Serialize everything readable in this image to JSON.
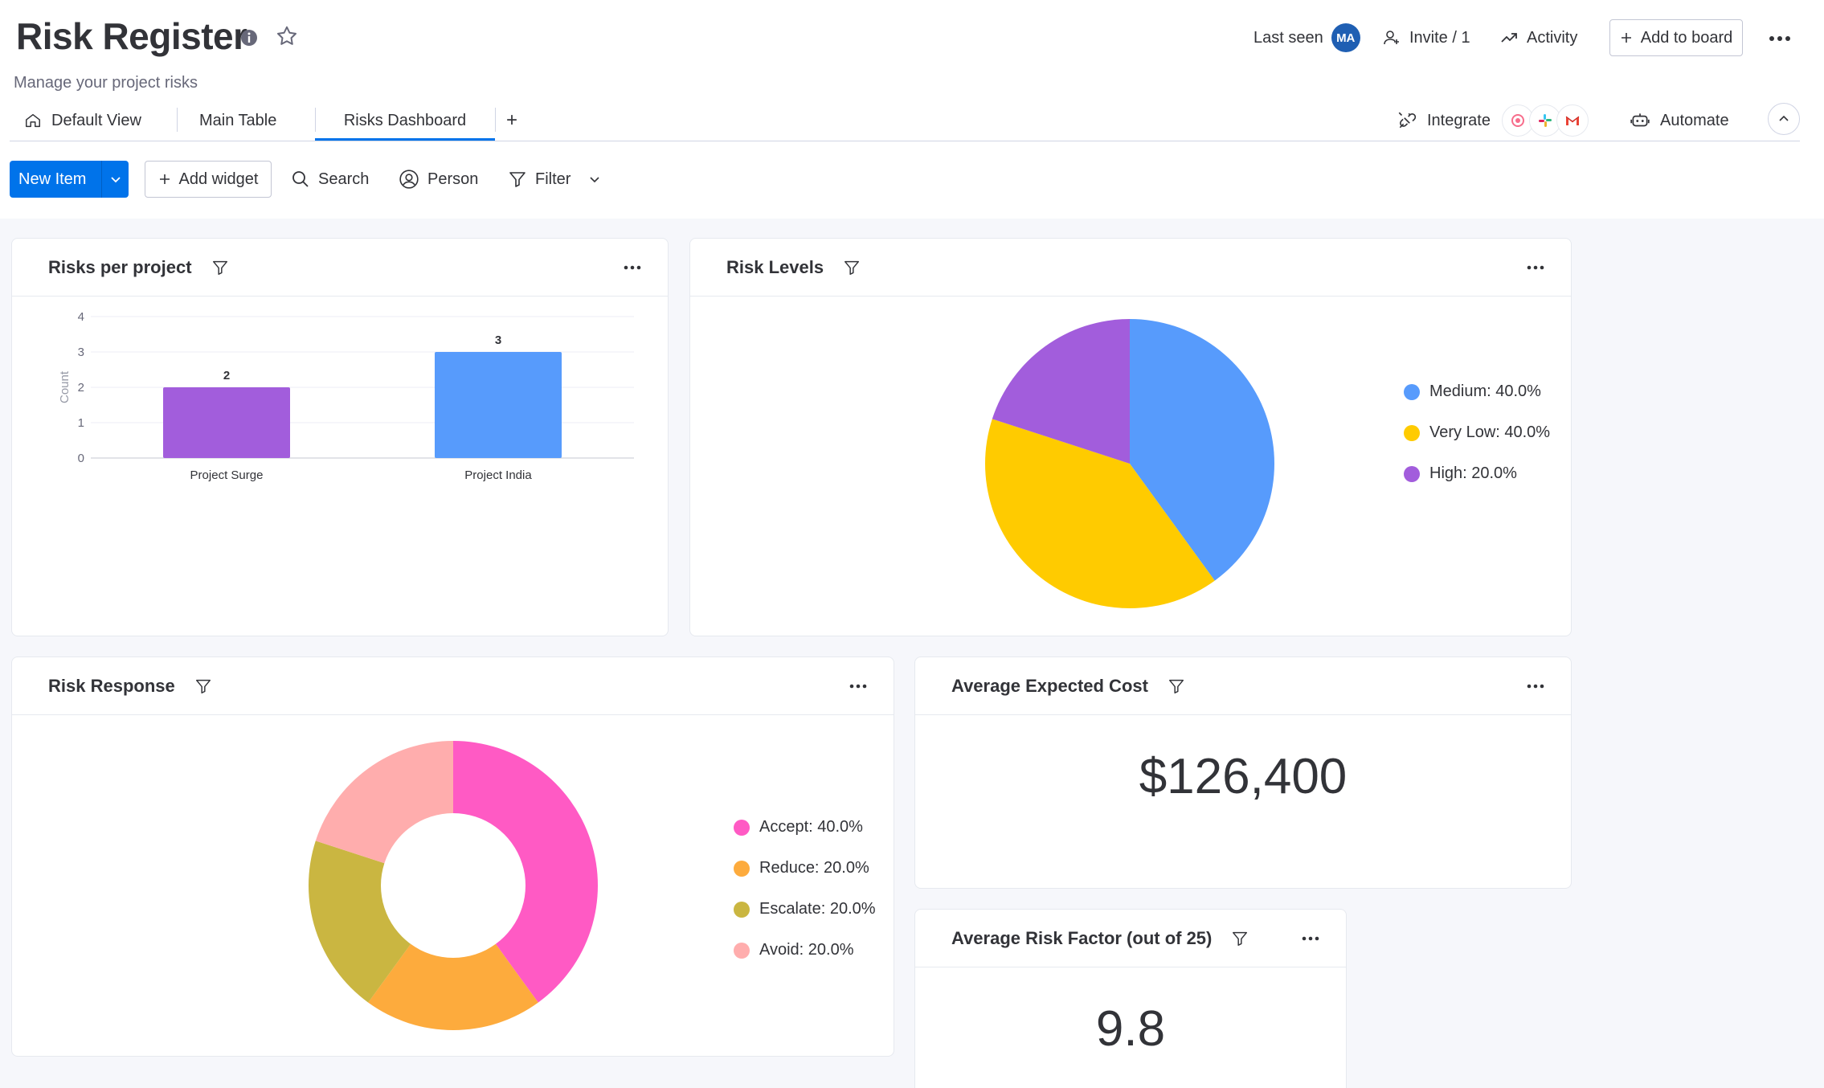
{
  "board": {
    "title": "Risk Register",
    "subtitle": "Manage your project risks"
  },
  "header": {
    "last_seen_label": "Last seen",
    "avatar_initials": "MA",
    "invite_label": "Invite / 1",
    "activity_label": "Activity",
    "add_to_board_label": "Add to board"
  },
  "tabs": [
    {
      "label": "Default View",
      "active": false
    },
    {
      "label": "Main Table",
      "active": false
    },
    {
      "label": "Risks Dashboard",
      "active": true
    }
  ],
  "tabs_add_label": "+",
  "integrations": {
    "integrate_label": "Integrate",
    "automate_label": "Automate"
  },
  "toolbar": {
    "new_item_label": "New Item",
    "add_widget_label": "Add widget",
    "search_label": "Search",
    "person_label": "Person",
    "filter_label": "Filter"
  },
  "colors": {
    "accent": "#0073ea",
    "purple": "#a25ddc",
    "blue": "#579bfc",
    "yellow": "#ffcb00",
    "pink": "#ff5ac4",
    "orange": "#fdab3d",
    "olive": "#cab641",
    "light_red": "#ffadad"
  },
  "widgets": {
    "risks_per_project": {
      "title": "Risks per project"
    },
    "risk_levels": {
      "title": "Risk Levels"
    },
    "risk_response": {
      "title": "Risk Response"
    },
    "avg_expected_cost": {
      "title": "Average Expected Cost",
      "value": "$126,400"
    },
    "avg_risk_factor": {
      "title": "Average Risk Factor (out of 25)",
      "value": "9.8"
    }
  },
  "chart_data": [
    {
      "type": "bar",
      "title": "Risks per project",
      "categories": [
        "Project Surge",
        "Project India"
      ],
      "values": [
        2,
        3
      ],
      "data_labels": [
        "2",
        "3"
      ],
      "colors": [
        "#a25ddc",
        "#579bfc"
      ],
      "ylabel": "Count",
      "ylim": [
        0,
        4
      ],
      "yticks": [
        "0",
        "1",
        "2",
        "3",
        "4"
      ],
      "grid": true
    },
    {
      "type": "pie",
      "title": "Risk Levels",
      "labels": [
        "Medium",
        "Very Low",
        "High"
      ],
      "values": [
        40.0,
        40.0,
        20.0
      ],
      "legend": [
        "Medium: 40.0%",
        "Very Low: 40.0%",
        "High: 20.0%"
      ],
      "colors": [
        "#579bfc",
        "#ffcb00",
        "#a25ddc"
      ],
      "legend_position": "right"
    },
    {
      "type": "pie",
      "style": "donut",
      "title": "Risk Response",
      "labels": [
        "Accept",
        "Reduce",
        "Escalate",
        "Avoid"
      ],
      "values": [
        40.0,
        20.0,
        20.0,
        20.0
      ],
      "legend": [
        "Accept: 40.0%",
        "Reduce: 20.0%",
        "Escalate: 20.0%",
        "Avoid: 20.0%"
      ],
      "colors": [
        "#ff5ac4",
        "#fdab3d",
        "#cab641",
        "#ffadad"
      ],
      "legend_position": "right"
    }
  ]
}
